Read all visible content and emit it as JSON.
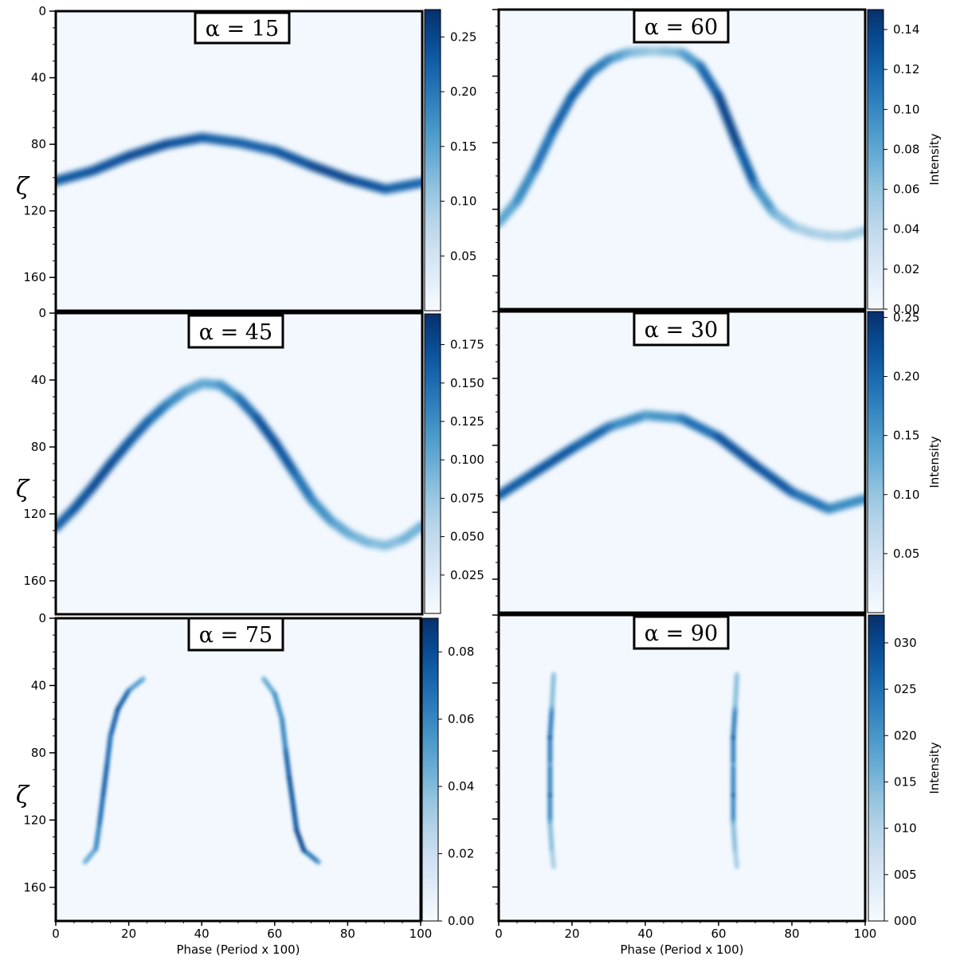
{
  "chart_data": [
    {
      "type": "heatmap",
      "title": "α = 15",
      "xlabel": "",
      "ylabel": "ζ",
      "xlim": [
        0,
        100
      ],
      "ylim": [
        0,
        180
      ],
      "yticks": [
        "0",
        "40",
        "80",
        "120",
        "160"
      ],
      "xticks": [],
      "colorbar": {
        "label": "",
        "ticks": [
          "0.05",
          "0.10",
          "0.15",
          "0.20",
          "0.25"
        ],
        "tick_values": [
          0.05,
          0.1,
          0.15,
          0.2,
          0.25
        ],
        "max": 0.275
      },
      "curve": {
        "phase": [
          0,
          10,
          20,
          30,
          40,
          50,
          60,
          70,
          80,
          90,
          100
        ],
        "zeta": [
          102,
          96,
          87,
          80,
          76,
          79,
          84,
          93,
          101,
          107,
          103
        ],
        "intensity": [
          0.22,
          0.23,
          0.24,
          0.24,
          0.22,
          0.21,
          0.22,
          0.24,
          0.25,
          0.22,
          0.2
        ]
      }
    },
    {
      "type": "heatmap",
      "title": "α = 60",
      "xlabel": "",
      "ylabel": "",
      "xlim": [
        0,
        100
      ],
      "ylim": [
        0,
        180
      ],
      "yticks": [],
      "xticks": [],
      "colorbar": {
        "label": "Intensity",
        "ticks": [
          "0.00",
          "0.02",
          "0.04",
          "0.06",
          "0.08",
          "0.10",
          "0.12",
          "0.14"
        ],
        "tick_values": [
          0.0,
          0.02,
          0.04,
          0.06,
          0.08,
          0.1,
          0.12,
          0.14
        ],
        "max": 0.15
      },
      "curve": {
        "phase": [
          0,
          5,
          10,
          15,
          20,
          25,
          30,
          35,
          40,
          45,
          50,
          55,
          60,
          65,
          70,
          75,
          80,
          85,
          90,
          95,
          100
        ],
        "zeta": [
          128,
          115,
          95,
          72,
          52,
          38,
          30,
          26,
          25,
          25,
          26,
          34,
          52,
          80,
          106,
          122,
          130,
          134,
          136,
          136,
          133
        ],
        "intensity": [
          0.06,
          0.08,
          0.1,
          0.11,
          0.12,
          0.11,
          0.09,
          0.06,
          0.04,
          0.04,
          0.06,
          0.1,
          0.13,
          0.14,
          0.1,
          0.06,
          0.04,
          0.03,
          0.03,
          0.03,
          0.04
        ]
      }
    },
    {
      "type": "heatmap",
      "title": "α = 45",
      "xlabel": "",
      "ylabel": "ζ",
      "xlim": [
        0,
        100
      ],
      "ylim": [
        0,
        180
      ],
      "yticks": [
        "0",
        "40",
        "80",
        "120",
        "160"
      ],
      "xticks": [],
      "colorbar": {
        "label": "",
        "ticks": [
          "0.025",
          "0.050",
          "0.075",
          "0.100",
          "0.125",
          "0.150",
          "0.175"
        ],
        "tick_values": [
          0.025,
          0.05,
          0.075,
          0.1,
          0.125,
          0.15,
          0.175
        ],
        "max": 0.195
      },
      "curve": {
        "phase": [
          0,
          5,
          10,
          15,
          20,
          25,
          30,
          35,
          40,
          45,
          50,
          55,
          60,
          65,
          70,
          75,
          80,
          85,
          90,
          95,
          100
        ],
        "zeta": [
          128,
          117,
          104,
          90,
          77,
          65,
          55,
          47,
          42,
          43,
          51,
          63,
          78,
          95,
          112,
          124,
          132,
          137,
          139,
          135,
          127
        ],
        "intensity": [
          0.15,
          0.16,
          0.17,
          0.17,
          0.16,
          0.15,
          0.13,
          0.1,
          0.08,
          0.1,
          0.13,
          0.16,
          0.17,
          0.15,
          0.12,
          0.1,
          0.08,
          0.07,
          0.06,
          0.07,
          0.08
        ]
      }
    },
    {
      "type": "heatmap",
      "title": "α = 30",
      "xlabel": "",
      "ylabel": "",
      "xlim": [
        0,
        100
      ],
      "ylim": [
        0,
        180
      ],
      "yticks": [],
      "xticks": [],
      "colorbar": {
        "label": "Intensity",
        "ticks": [
          "0.05",
          "0.10",
          "0.15",
          "0.20",
          "0.25"
        ],
        "tick_values": [
          0.05,
          0.1,
          0.15,
          0.2,
          0.25
        ],
        "max": 0.255
      },
      "curve": {
        "phase": [
          0,
          10,
          20,
          30,
          40,
          50,
          60,
          70,
          80,
          90,
          100
        ],
        "zeta": [
          110,
          96,
          82,
          69,
          62,
          64,
          75,
          92,
          108,
          118,
          112
        ],
        "intensity": [
          0.2,
          0.21,
          0.21,
          0.18,
          0.12,
          0.16,
          0.21,
          0.22,
          0.2,
          0.16,
          0.14
        ]
      }
    },
    {
      "type": "heatmap",
      "title": "α = 75",
      "xlabel": "Phase (Period x 100)",
      "ylabel": "ζ",
      "xlim": [
        0,
        100
      ],
      "ylim": [
        0,
        180
      ],
      "yticks": [
        "0",
        "40",
        "80",
        "120",
        "160"
      ],
      "xticks": [
        "0",
        "20",
        "40",
        "60",
        "80",
        "100"
      ],
      "colorbar": {
        "label": "",
        "ticks": [
          "0.00",
          "0.02",
          "0.04",
          "0.06",
          "0.08"
        ],
        "tick_values": [
          0.0,
          0.02,
          0.04,
          0.06,
          0.08
        ],
        "max": 0.09
      },
      "curves": [
        {
          "phase": [
            8,
            11,
            12,
            13,
            14,
            15,
            17,
            20,
            24
          ],
          "zeta": [
            145,
            137,
            122,
            105,
            88,
            70,
            54,
            43,
            36
          ],
          "intensity": [
            0.03,
            0.05,
            0.06,
            0.07,
            0.07,
            0.06,
            0.08,
            0.06,
            0.03
          ]
        },
        {
          "phase": [
            57,
            60,
            62,
            63,
            64,
            65,
            66,
            68,
            72
          ],
          "zeta": [
            36,
            45,
            60,
            78,
            95,
            110,
            126,
            138,
            145
          ],
          "intensity": [
            0.03,
            0.05,
            0.05,
            0.06,
            0.08,
            0.07,
            0.08,
            0.08,
            0.04
          ]
        }
      ]
    },
    {
      "type": "heatmap",
      "title": "α = 90",
      "xlabel": "Phase (Period x 100)",
      "ylabel": "",
      "xlim": [
        0,
        100
      ],
      "ylim": [
        0,
        180
      ],
      "yticks": [],
      "xticks": [
        "0",
        "20",
        "40",
        "60",
        "80",
        "100"
      ],
      "colorbar": {
        "label": "Intensity",
        "ticks": [
          "000",
          "005",
          "010",
          "015",
          "020",
          "025",
          "030"
        ],
        "tick_values": [
          0,
          5,
          10,
          15,
          20,
          25,
          30
        ],
        "max": 33
      },
      "curves": [
        {
          "phase": [
            15,
            14.5,
            14,
            14,
            14,
            14,
            14.5,
            15
          ],
          "zeta": [
            35,
            55,
            72,
            88,
            106,
            122,
            138,
            148
          ],
          "intensity": [
            8,
            14,
            28,
            14,
            26,
            13,
            9,
            6
          ]
        },
        {
          "phase": [
            65,
            64.5,
            64,
            64,
            64,
            64,
            64.5,
            65
          ],
          "zeta": [
            35,
            55,
            72,
            88,
            106,
            122,
            138,
            148
          ],
          "intensity": [
            8,
            14,
            28,
            14,
            26,
            13,
            9,
            6
          ]
        }
      ]
    }
  ]
}
